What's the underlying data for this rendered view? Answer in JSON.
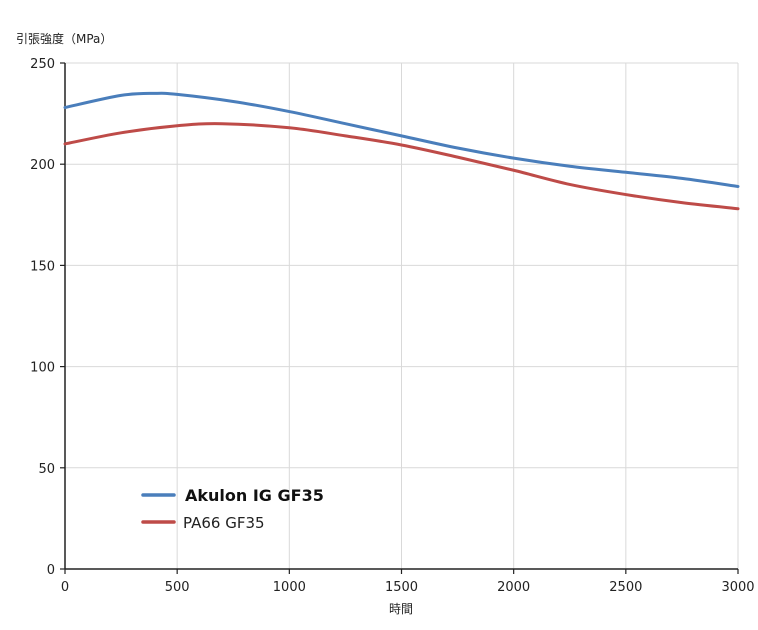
{
  "chart_data": {
    "type": "line",
    "title": "",
    "ylabel": "引張強度（MPa）",
    "xlabel": "時間",
    "xlim": [
      0,
      3000
    ],
    "ylim": [
      0,
      250
    ],
    "x_ticks": [
      "0",
      "500",
      "1000",
      "1500",
      "2000",
      "2500",
      "3000"
    ],
    "y_ticks": [
      "0",
      "50",
      "100",
      "150",
      "200",
      "250"
    ],
    "grid": true,
    "legend_position": "bottom-left",
    "series": [
      {
        "name": "Akulon IG GF35",
        "color": "#4A7EBB",
        "points": [
          [
            0,
            228
          ],
          [
            250,
            234
          ],
          [
            400,
            235
          ],
          [
            500,
            234.5
          ],
          [
            750,
            231
          ],
          [
            1000,
            226
          ],
          [
            1250,
            220
          ],
          [
            1500,
            214
          ],
          [
            1750,
            208
          ],
          [
            2000,
            203
          ],
          [
            2250,
            199
          ],
          [
            2500,
            196
          ],
          [
            2750,
            193
          ],
          [
            3000,
            189
          ]
        ]
      },
      {
        "name": "PA66 GF35",
        "color": "#BE4B48",
        "points": [
          [
            0,
            210
          ],
          [
            250,
            215.5
          ],
          [
            500,
            219
          ],
          [
            700,
            220
          ],
          [
            1000,
            218
          ],
          [
            1250,
            214
          ],
          [
            1500,
            209.5
          ],
          [
            1750,
            203.5
          ],
          [
            2000,
            197
          ],
          [
            2250,
            190
          ],
          [
            2500,
            185
          ],
          [
            2750,
            181
          ],
          [
            3000,
            178
          ]
        ]
      }
    ]
  }
}
